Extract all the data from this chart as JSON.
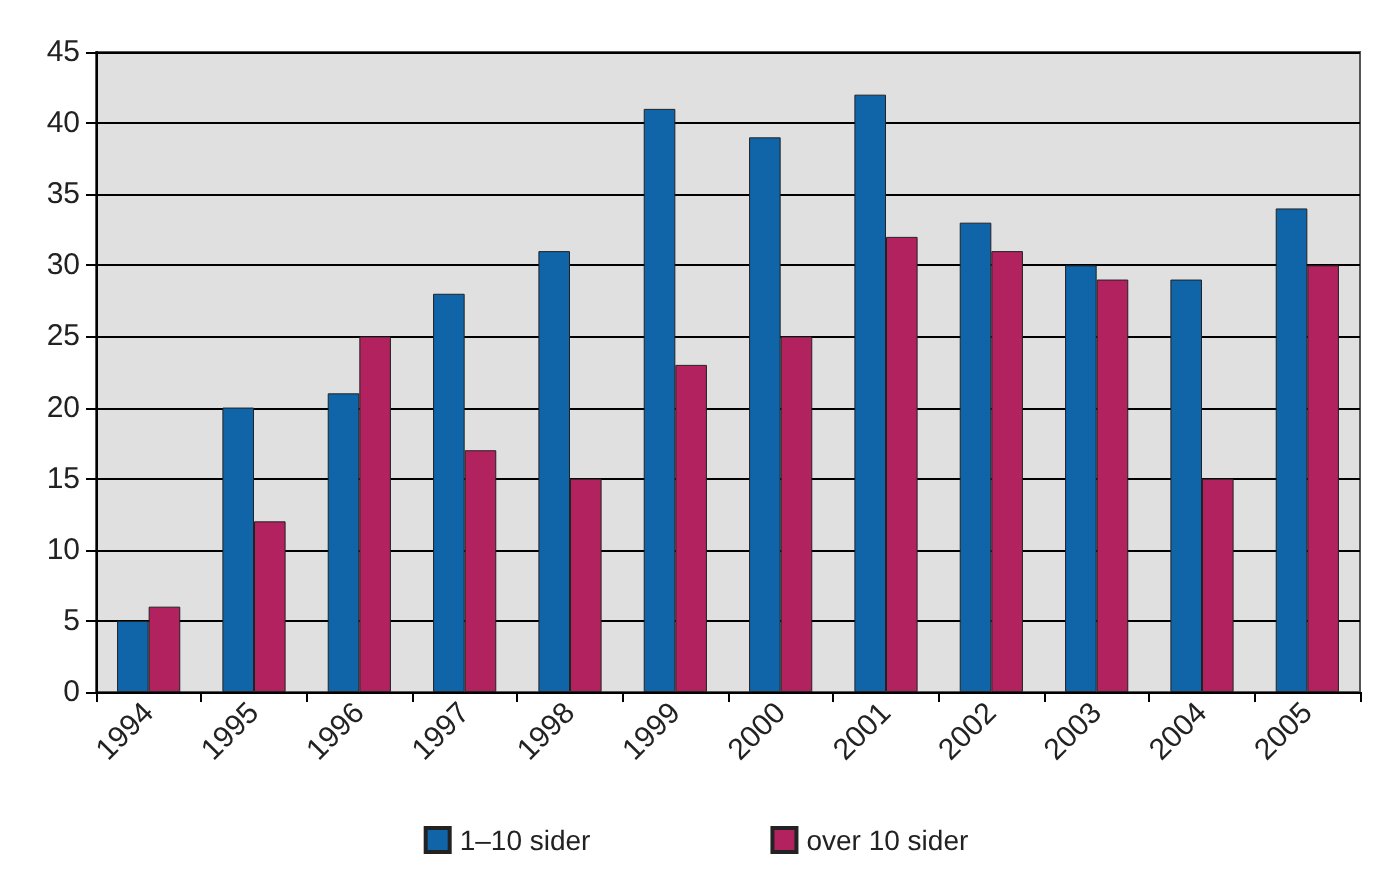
{
  "chart_data": {
    "type": "bar",
    "categories": [
      "1994",
      "1995",
      "1996",
      "1997",
      "1998",
      "1999",
      "2000",
      "2001",
      "2002",
      "2003",
      "2004",
      "2005"
    ],
    "series": [
      {
        "name": "1–10 sider",
        "color": "#0f65a8",
        "values": [
          5,
          20,
          21,
          28,
          31,
          41,
          39,
          42,
          33,
          30,
          29,
          34
        ]
      },
      {
        "name": "over 10 sider",
        "color": "#b1225f",
        "values": [
          6,
          12,
          25,
          17,
          15,
          23,
          25,
          32,
          31,
          29,
          15,
          30
        ]
      }
    ],
    "ylim": [
      0,
      45
    ],
    "yticks": [
      0,
      5,
      10,
      15,
      20,
      25,
      30,
      35,
      40,
      45
    ],
    "grid": "y",
    "legend": "bottom"
  }
}
